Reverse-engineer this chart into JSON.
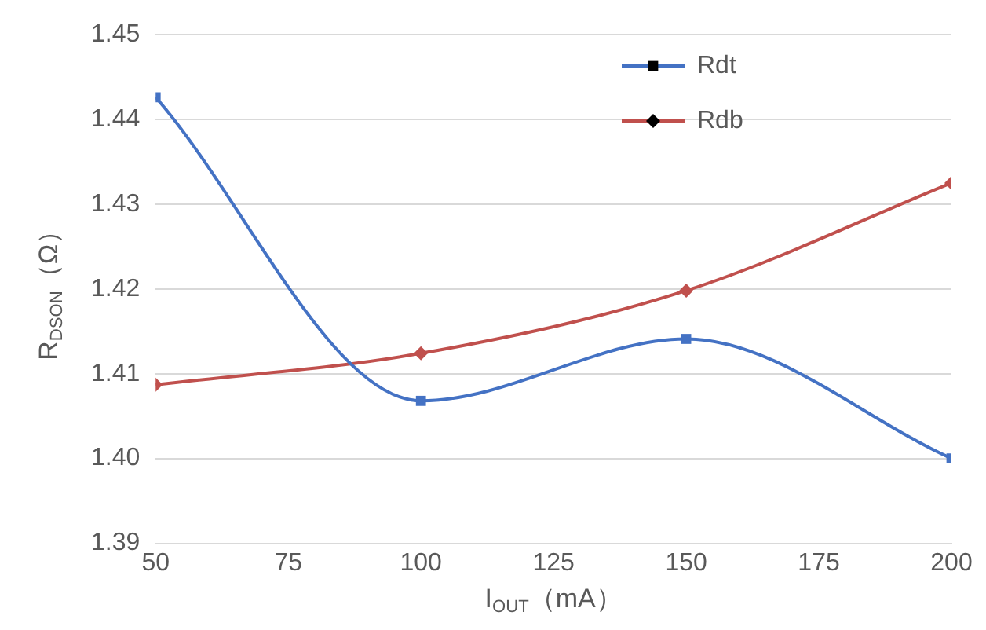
{
  "chart_data": {
    "type": "line",
    "xlabel": "I$_{OUT}$（mA）",
    "ylabel": "R$_{DSON}$（Ω）",
    "x": [
      50,
      100,
      150,
      200
    ],
    "series": [
      {
        "name": "Rdt",
        "color": "#4472c4",
        "marker": "square",
        "values": [
          1.4426,
          1.4068,
          1.4141,
          1.4
        ]
      },
      {
        "name": "Rdb",
        "color": "#c0504d",
        "marker": "diamond",
        "values": [
          1.4087,
          1.4124,
          1.4198,
          1.4325
        ]
      }
    ],
    "xlim": [
      50,
      200
    ],
    "xticks": [
      50,
      75,
      100,
      125,
      150,
      175,
      200
    ],
    "ylim": [
      1.39,
      1.45
    ],
    "yticks": [
      {
        "value": 1.39,
        "label": "1.39"
      },
      {
        "value": 1.4,
        "label": "1.40"
      },
      {
        "value": 1.41,
        "label": "1.41"
      },
      {
        "value": 1.42,
        "label": "1.42"
      },
      {
        "value": 1.43,
        "label": "1.43"
      },
      {
        "value": 1.44,
        "label": "1.44"
      },
      {
        "value": 1.45,
        "label": "1.45"
      }
    ],
    "grid": "y",
    "legend": "top right",
    "line_style": "solid"
  }
}
